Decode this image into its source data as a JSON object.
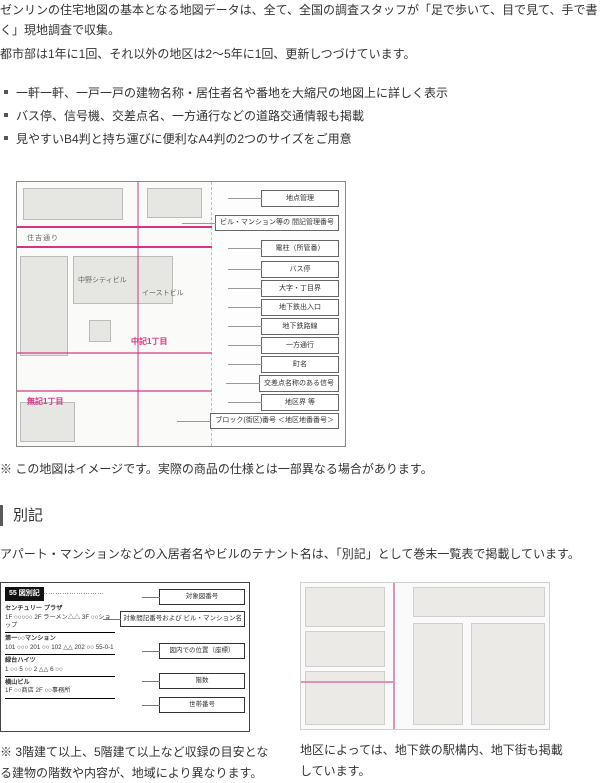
{
  "intro": {
    "p1": "ゼンリンの住宅地図の基本となる地図データは、全て、全国の調査スタッフが「足で歩いて、目で見て、手で書く」現地調査で収集。",
    "p2": "都市部は1年に1回、それ以外の地区は2〜5年に1回、更新しつづけています。"
  },
  "features": [
    "一軒一軒、一戸一戸の建物名称・居住者名や番地を大縮尺の地図上に詳しく表示",
    "バス停、信号機、交差点名、一方通行などの道路交通情報も掲載",
    "見やすいB4判と持ち運びに便利なA4判の2つのサイズをご用意"
  ],
  "map": {
    "road_label": "住吉通り",
    "center_label": "中野シティビル",
    "east_label": "イーストビル",
    "area_label_1": "無記1丁目",
    "area_label_2": "中記1丁目",
    "legend": [
      "地点管理",
      "ビル・マンション等の\n間記管理番号",
      "電柱（所管番）",
      "バス停",
      "大字・丁目界",
      "地下鉄出入口",
      "地下鉄路線",
      "一方通行",
      "町名",
      "交差点名称のある信号",
      "地区界 等",
      "ブロック(街区)番号\n＜地区地番番号＞"
    ]
  },
  "fig_note": "※ この地図はイメージです。実際の商品の仕様とは一部異なる場合があります。",
  "bekki": {
    "title": "別記",
    "lead": "アパート・マンションなどの入居者名やビルのテナント名は、「別記」として巻末一覧表で掲載しています。",
    "head_num": "55",
    "head_text": "図別記",
    "head_sub": "………………………",
    "group1_title": "センチュリー\nプラザ",
    "group1_body": "1F ○○○○○\n 2F ラーメン△△\n 3F ○○ショップ",
    "group2_title": "第一○○マンション",
    "group2_body": "101 ○○○ 201 ○○\n102 △△  202 ○○\n    55-0-1",
    "group3_title": "緑台ハイツ",
    "group3_body": "1 ○○ 5 ○○\n2 △△ 6 ○○",
    "group4_title": "横山ビル",
    "group4_body": "1F ○○商店\n2F ○○事務所",
    "labels": [
      "対象図番号",
      "対象間記番号および\nビル・マンション名",
      "図内での位置（座標）",
      "階数",
      "世帯番号"
    ],
    "note": "※ 3階建て以上、5階建て以上など収録の目安となる建物の階数や内容が、地域により異なります。",
    "right_note": "地区によっては、地下鉄の駅構内、地下街も掲載しています。"
  }
}
